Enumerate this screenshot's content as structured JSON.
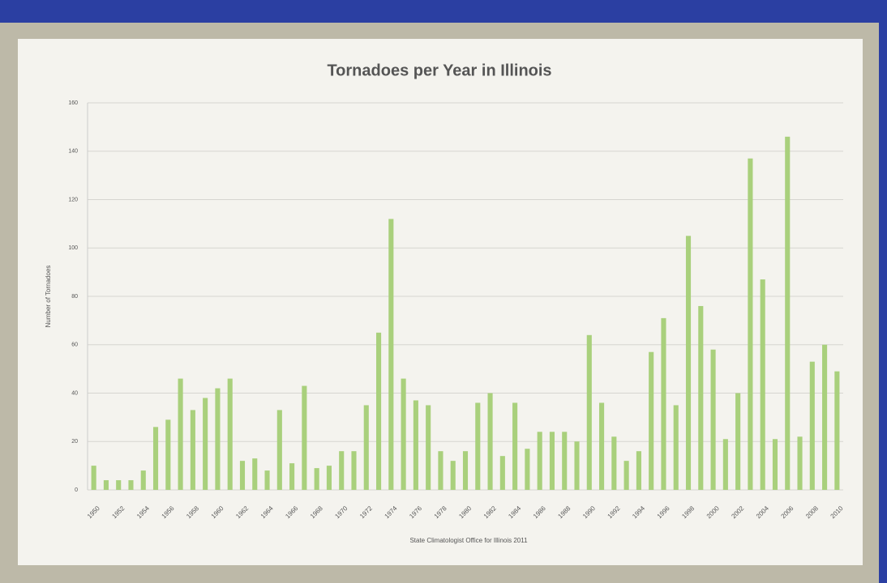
{
  "chart_data": {
    "type": "bar",
    "title": "Tornadoes per Year in Illinois",
    "y_label": "Number of Tornadoes",
    "source": "State Climatologist Office for Illinois 2011",
    "categories": [
      "1950",
      null,
      "1952",
      null,
      "1954",
      null,
      "1956",
      null,
      "1958",
      null,
      "1960",
      null,
      "1962",
      null,
      "1964",
      null,
      "1966",
      null,
      "1968",
      null,
      "1970",
      null,
      "1972",
      null,
      "1974",
      null,
      "1976",
      null,
      "1978",
      null,
      "1980",
      null,
      "1982",
      null,
      "1984",
      null,
      "1986",
      null,
      "1988",
      null,
      "1990",
      null,
      "1992",
      null,
      "1994",
      null,
      "1996",
      null,
      "1998",
      null,
      "2000",
      null,
      "2002",
      null,
      "2004",
      null,
      "2006",
      null,
      "2008",
      null,
      "2010"
    ],
    "values": [
      10,
      4,
      4,
      4,
      8,
      26,
      29,
      46,
      33,
      38,
      42,
      46,
      12,
      13,
      8,
      33,
      11,
      43,
      9,
      10,
      16,
      16,
      35,
      65,
      112,
      46,
      37,
      35,
      16,
      12,
      16,
      36,
      40,
      14,
      36,
      17,
      24,
      24,
      24,
      20,
      64,
      36,
      22,
      12,
      16,
      57,
      71,
      35,
      105,
      76,
      58,
      21,
      40,
      137,
      87,
      21,
      146,
      22,
      53,
      60,
      49
    ],
    "color": "#a9d07c",
    "ylim": [
      0,
      160
    ],
    "yticks": [
      0,
      20,
      40,
      60,
      80,
      100,
      120,
      140,
      160
    ],
    "grid": true
  }
}
